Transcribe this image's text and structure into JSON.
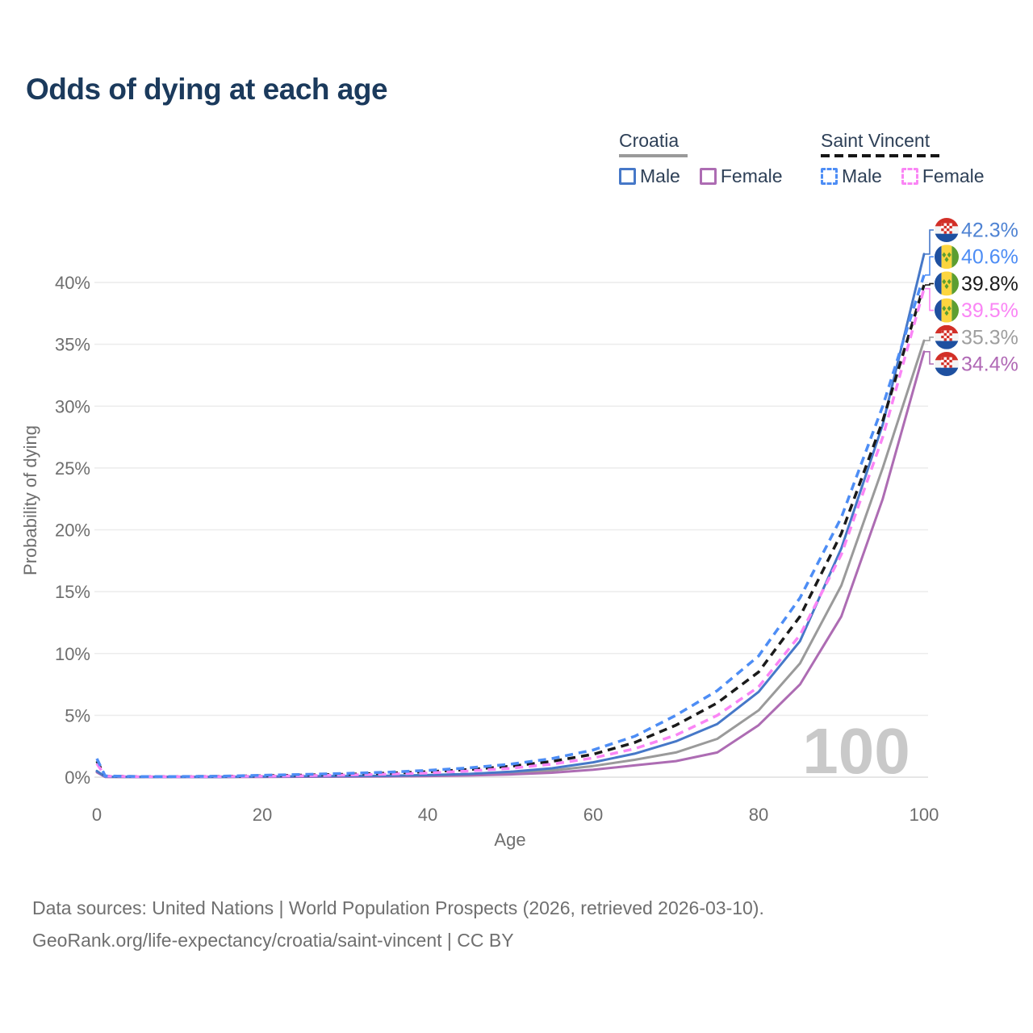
{
  "title": "Odds of dying at each age",
  "watermark": "100",
  "legend": {
    "groups": [
      {
        "label": "Croatia",
        "underline": {
          "style": "solid",
          "color": "#9a9a9a"
        },
        "items": [
          {
            "label": "Male",
            "color": "#4678c8",
            "dashed": false
          },
          {
            "label": "Female",
            "color": "#ad6cb3",
            "dashed": false
          }
        ]
      },
      {
        "label": "Saint Vincent",
        "underline": {
          "style": "dashed",
          "color": "#161616"
        },
        "items": [
          {
            "label": "Male",
            "color": "#4d8df5",
            "dashed": true
          },
          {
            "label": "Female",
            "color": "#fa85f5",
            "dashed": true
          }
        ]
      }
    ]
  },
  "footer": {
    "line1": "Data sources: United Nations | World Population Prospects (2026, retrieved 2026-03-10).",
    "line2": "GeoRank.org/life-expectancy/croatia/saint-vincent | CC BY"
  },
  "chart_data": {
    "type": "line",
    "title": "Odds of dying at each age",
    "xlabel": "Age",
    "ylabel": "Probability of dying",
    "xlim": [
      0,
      100
    ],
    "ylim_percent": [
      0,
      44
    ],
    "grid": "horizontal",
    "legend_position": "top-right",
    "x_ticks": [
      0,
      20,
      40,
      60,
      80,
      100
    ],
    "y_tick_labels": [
      "0%",
      "5%",
      "10%",
      "15%",
      "20%",
      "25%",
      "30%",
      "35%",
      "40%"
    ],
    "ages": [
      0,
      1,
      5,
      10,
      15,
      20,
      25,
      30,
      35,
      40,
      45,
      50,
      55,
      60,
      65,
      70,
      75,
      80,
      85,
      90,
      95,
      100
    ],
    "series": [
      {
        "name": "Croatia Male",
        "country": "Croatia",
        "sex": "Male",
        "style": "solid",
        "color": "#4678c8",
        "label_color": "#4f83d3",
        "flag": "croatia",
        "end_label": "42.3%",
        "end_value": 42.3,
        "values": [
          0.5,
          0.03,
          0.01,
          0.01,
          0.02,
          0.05,
          0.07,
          0.09,
          0.12,
          0.17,
          0.26,
          0.44,
          0.72,
          1.2,
          1.9,
          2.9,
          4.3,
          6.9,
          11.0,
          18.5,
          28.5,
          42.3
        ]
      },
      {
        "name": "Saint Vincent Male",
        "country": "Saint Vincent",
        "sex": "Male",
        "style": "dashed",
        "color": "#4d8df5",
        "label_color": "#4d8df5",
        "flag": "saint-vincent",
        "end_label": "40.6%",
        "end_value": 40.6,
        "values": [
          1.5,
          0.1,
          0.05,
          0.05,
          0.08,
          0.15,
          0.22,
          0.3,
          0.4,
          0.55,
          0.75,
          1.05,
          1.5,
          2.2,
          3.3,
          5.0,
          7.0,
          9.8,
          14.5,
          21.0,
          30.0,
          40.6
        ]
      },
      {
        "name": "Saint Vincent Both",
        "country": "Saint Vincent",
        "sex": "Both",
        "style": "dashed",
        "color": "#1a1a1a",
        "label_color": "#1a1a1a",
        "flag": "saint-vincent",
        "end_label": "39.8%",
        "end_value": 39.8,
        "values": [
          1.3,
          0.09,
          0.045,
          0.045,
          0.065,
          0.11,
          0.17,
          0.23,
          0.32,
          0.44,
          0.62,
          0.88,
          1.27,
          1.85,
          2.8,
          4.2,
          6.0,
          8.5,
          13.0,
          19.7,
          28.8,
          39.8
        ]
      },
      {
        "name": "Saint Vincent Female",
        "country": "Saint Vincent",
        "sex": "Female",
        "style": "dashed",
        "color": "#fa85f5",
        "label_color": "#fa85f5",
        "flag": "saint-vincent",
        "end_label": "39.5%",
        "end_value": 39.5,
        "values": [
          1.1,
          0.08,
          0.04,
          0.04,
          0.05,
          0.08,
          0.12,
          0.17,
          0.24,
          0.34,
          0.5,
          0.72,
          1.05,
          1.55,
          2.3,
          3.4,
          5.0,
          7.3,
          11.5,
          18.0,
          27.5,
          39.5
        ]
      },
      {
        "name": "Croatia Both",
        "country": "Croatia",
        "sex": "Both",
        "style": "solid",
        "color": "#9a9a9a",
        "label_color": "#9e9e9e",
        "flag": "croatia",
        "end_label": "35.3%",
        "end_value": 35.3,
        "values": [
          0.45,
          0.025,
          0.01,
          0.01,
          0.018,
          0.035,
          0.05,
          0.065,
          0.09,
          0.13,
          0.2,
          0.33,
          0.54,
          0.9,
          1.4,
          2.0,
          3.1,
          5.4,
          9.2,
          15.5,
          25.0,
          35.3
        ]
      },
      {
        "name": "Croatia Female",
        "country": "Croatia",
        "sex": "Female",
        "style": "solid",
        "color": "#ad6cb3",
        "label_color": "#b069b5",
        "flag": "croatia",
        "end_label": "34.4%",
        "end_value": 34.4,
        "values": [
          0.4,
          0.02,
          0.01,
          0.01,
          0.015,
          0.02,
          0.03,
          0.04,
          0.06,
          0.09,
          0.14,
          0.22,
          0.36,
          0.6,
          0.95,
          1.3,
          2.0,
          4.2,
          7.5,
          13.0,
          22.5,
          34.4
        ]
      }
    ]
  }
}
